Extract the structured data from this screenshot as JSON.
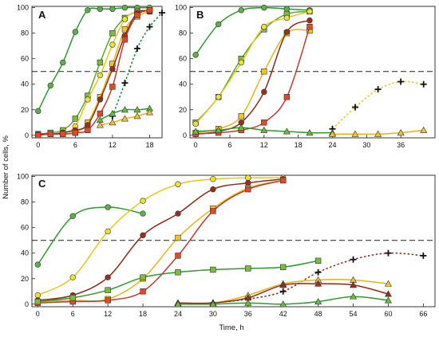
{
  "figure": {
    "ylabel": "Number of cells, %",
    "xlabel": "Time, h"
  },
  "chart_data": [
    {
      "type": "line",
      "panel": "A",
      "xlim": [
        -1,
        20
      ],
      "ylim": [
        -2,
        101
      ],
      "xticks": [
        0,
        6,
        12,
        18
      ],
      "yticks": [
        0,
        20,
        40,
        60,
        80,
        100
      ],
      "reference_line": 50,
      "series": [
        {
          "marker": "circle",
          "color": "#5bb04a",
          "line": "#2e9a2e",
          "x": [
            0,
            2,
            4,
            6,
            8,
            10,
            12,
            14,
            16,
            18
          ],
          "y": [
            19,
            39,
            57,
            81,
            98,
            99,
            99,
            100,
            100,
            100
          ]
        },
        {
          "marker": "square",
          "color": "#7cbc3a",
          "line": "#5aa832",
          "x": [
            0,
            2,
            4,
            6,
            8,
            10,
            12,
            14,
            16,
            18
          ],
          "y": [
            1,
            2,
            4,
            13,
            31,
            57,
            80,
            92,
            97,
            98
          ]
        },
        {
          "marker": "circle",
          "color": "#ece236",
          "line": "#e6c716",
          "x": [
            0,
            2,
            4,
            6,
            8,
            10,
            12,
            14,
            16,
            18
          ],
          "y": [
            0,
            1,
            2,
            7,
            28,
            47,
            71,
            91,
            97,
            98
          ]
        },
        {
          "marker": "square",
          "color": "#f2c61f",
          "line": "#e6b416",
          "x": [
            0,
            2,
            4,
            6,
            8,
            10,
            12,
            14,
            16,
            18
          ],
          "y": [
            0,
            1,
            1,
            2,
            10,
            30,
            56,
            83,
            93,
            97
          ]
        },
        {
          "marker": "circle",
          "color": "#9a2f1c",
          "line": "#8b2a16",
          "x": [
            0,
            2,
            4,
            6,
            8,
            10,
            12,
            14,
            16,
            18
          ],
          "y": [
            1,
            1,
            2,
            4,
            8,
            28,
            52,
            78,
            96,
            97
          ]
        },
        {
          "marker": "square",
          "color": "#e04a26",
          "line": "#c0392b",
          "x": [
            0,
            2,
            4,
            6,
            8,
            10,
            12,
            14,
            16,
            18
          ],
          "y": [
            0,
            1,
            1,
            2,
            4,
            17,
            38,
            75,
            94,
            98
          ]
        },
        {
          "marker": "cross",
          "color": "#111111",
          "line": "#0a8a2a",
          "dashed": true,
          "x": [
            12,
            14,
            16,
            18,
            20
          ],
          "y": [
            15,
            41,
            68,
            85,
            96
          ]
        },
        {
          "marker": "triangle",
          "color": "#6bbb3e",
          "line": "#2e9a2e",
          "x": [
            10,
            12,
            14,
            16,
            18
          ],
          "y": [
            12,
            17,
            20,
            20,
            21
          ]
        },
        {
          "marker": "triangle",
          "color": "#f0c040",
          "line": "#e6b416",
          "x": [
            10,
            12,
            14,
            16,
            18
          ],
          "y": [
            8,
            10,
            13,
            15,
            18
          ]
        }
      ]
    },
    {
      "type": "line",
      "panel": "B",
      "xlim": [
        -1,
        42
      ],
      "ylim": [
        -2,
        101
      ],
      "xticks": [
        0,
        6,
        12,
        18,
        24,
        30,
        36
      ],
      "yticks": [
        0,
        20,
        40,
        60,
        80,
        100
      ],
      "reference_line": 50,
      "series": [
        {
          "marker": "circle",
          "color": "#5bb04a",
          "line": "#2e9a2e",
          "x": [
            0,
            4,
            8,
            12,
            16,
            20
          ],
          "y": [
            63,
            87,
            98,
            100,
            99,
            98
          ]
        },
        {
          "marker": "square",
          "color": "#7cbc3a",
          "line": "#5aa832",
          "x": [
            0,
            4,
            8,
            12,
            16,
            20
          ],
          "y": [
            10,
            30,
            60,
            83,
            95,
            97
          ]
        },
        {
          "marker": "circle",
          "color": "#ece236",
          "line": "#e6c716",
          "x": [
            0,
            4,
            8,
            12,
            16,
            20
          ],
          "y": [
            9,
            30,
            57,
            85,
            92,
            97
          ]
        },
        {
          "marker": "square",
          "color": "#f2c61f",
          "line": "#e6b416",
          "x": [
            0,
            4,
            8,
            12,
            16,
            20
          ],
          "y": [
            2,
            5,
            15,
            50,
            80,
            82
          ]
        },
        {
          "marker": "circle",
          "color": "#9a2f1c",
          "line": "#8b2a16",
          "x": [
            0,
            4,
            8,
            12,
            16,
            20
          ],
          "y": [
            1,
            3,
            10,
            34,
            81,
            90
          ]
        },
        {
          "marker": "square",
          "color": "#e04a26",
          "line": "#c0392b",
          "x": [
            0,
            4,
            8,
            12,
            16,
            20
          ],
          "y": [
            1,
            2,
            4,
            10,
            30,
            85
          ]
        },
        {
          "marker": "cross",
          "color": "#111111",
          "line": "#e6c716",
          "dashed": true,
          "x": [
            24,
            28,
            32,
            36,
            40
          ],
          "y": [
            5,
            22,
            36,
            42,
            40
          ]
        },
        {
          "marker": "triangle",
          "color": "#6bbb3e",
          "line": "#2e9a2e",
          "x": [
            0,
            4,
            8,
            12,
            16,
            20,
            24
          ],
          "y": [
            3,
            4,
            6,
            4,
            3,
            2,
            2
          ]
        },
        {
          "marker": "triangle",
          "color": "#f0c040",
          "line": "#e6b416",
          "x": [
            24,
            28,
            32,
            36,
            40
          ],
          "y": [
            1,
            1,
            1,
            2,
            4
          ]
        }
      ]
    },
    {
      "type": "line",
      "panel": "C",
      "xlim": [
        -1,
        68
      ],
      "ylim": [
        -2,
        101
      ],
      "xticks": [
        0,
        6,
        12,
        18,
        24,
        30,
        36,
        42,
        48,
        54,
        60,
        66
      ],
      "yticks": [
        0,
        20,
        40,
        60,
        80,
        100
      ],
      "reference_line": 50,
      "series": [
        {
          "marker": "circle",
          "color": "#5bb04a",
          "line": "#2e9a2e",
          "x": [
            0,
            6,
            12,
            18
          ],
          "y": [
            31,
            69,
            76,
            71
          ]
        },
        {
          "marker": "circle",
          "color": "#ece236",
          "line": "#e6c716",
          "x": [
            0,
            6,
            12,
            18,
            24,
            30,
            36,
            42
          ],
          "y": [
            7,
            21,
            57,
            81,
            94,
            98,
            99,
            99
          ]
        },
        {
          "marker": "circle",
          "color": "#9a2f1c",
          "line": "#8b2a16",
          "x": [
            0,
            6,
            12,
            18,
            24,
            30,
            36,
            42
          ],
          "y": [
            3,
            7,
            21,
            54,
            71,
            90,
            95,
            98
          ]
        },
        {
          "marker": "square",
          "color": "#f2c61f",
          "line": "#e6b416",
          "x": [
            0,
            6,
            12,
            18,
            24,
            30,
            36,
            42
          ],
          "y": [
            2,
            3,
            4,
            20,
            52,
            75,
            91,
            97
          ]
        },
        {
          "marker": "square",
          "color": "#e04a26",
          "line": "#c0392b",
          "x": [
            0,
            6,
            12,
            18,
            24,
            30,
            36,
            42
          ],
          "y": [
            1,
            2,
            3,
            10,
            38,
            73,
            90,
            97
          ]
        },
        {
          "marker": "square",
          "color": "#7cbc3a",
          "line": "#2e9a2e",
          "x": [
            0,
            6,
            12,
            18,
            24,
            30,
            36,
            42,
            48
          ],
          "y": [
            2,
            5,
            11,
            21,
            25,
            27,
            28,
            29,
            34
          ]
        },
        {
          "marker": "cross",
          "color": "#111111",
          "line": "#8b2a16",
          "dashed": true,
          "x": [
            30,
            36,
            42,
            48,
            54,
            60,
            66
          ],
          "y": [
            1,
            4,
            10,
            25,
            35,
            40,
            38
          ]
        },
        {
          "marker": "triangle",
          "color": "#f0c040",
          "line": "#e6b416",
          "x": [
            24,
            30,
            36,
            42,
            48,
            54,
            60
          ],
          "y": [
            1,
            1,
            7,
            16,
            19,
            19,
            16
          ]
        },
        {
          "marker": "triangle",
          "color": "#9a2f1c",
          "line": "#8b2a16",
          "x": [
            24,
            30,
            36,
            42,
            48,
            54,
            60
          ],
          "y": [
            1,
            1,
            5,
            15,
            16,
            15,
            8
          ]
        },
        {
          "marker": "triangle",
          "color": "#6bbb3e",
          "line": "#2e9a2e",
          "x": [
            24,
            30,
            36,
            42,
            48,
            54,
            60
          ],
          "y": [
            0,
            0,
            1,
            0,
            2,
            6,
            3
          ]
        }
      ]
    }
  ]
}
